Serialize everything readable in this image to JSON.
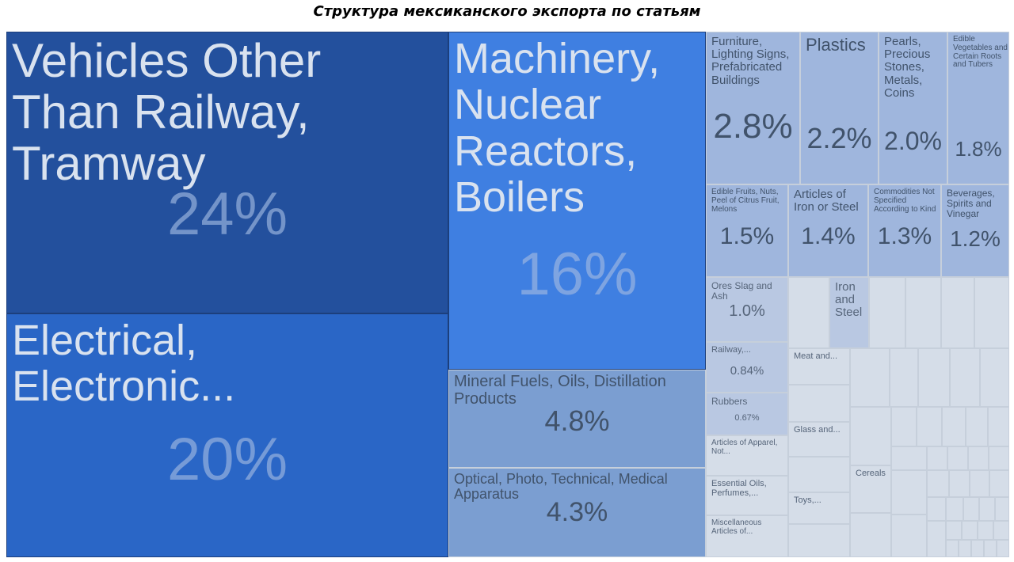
{
  "chart_data": {
    "type": "treemap",
    "title": "Структура мексиканского экспорта по статьям",
    "colors": {
      "top1": "#23509d",
      "top2": "#2a66c6",
      "top3": "#3f7fe1",
      "tier2": "#7b9ed1",
      "tier3": "#9fb6dd",
      "tier4": "#b9c8e2",
      "tier5": "#d5dde8"
    },
    "items": [
      {
        "label": "Vehicles Other Than Railway, Tramway",
        "share": "24%"
      },
      {
        "label": "Electrical, Electronic...",
        "share": "20%"
      },
      {
        "label": "Machinery, Nuclear Reactors, Boilers",
        "share": "16%"
      },
      {
        "label": "Mineral Fuels, Oils, Distillation Products",
        "share": "4.8%"
      },
      {
        "label": "Optical, Photo, Technical, Medical Apparatus",
        "share": "4.3%"
      },
      {
        "label": "Furniture, Lighting Signs, Prefabricated Buildings",
        "share": "2.8%"
      },
      {
        "label": "Plastics",
        "share": "2.2%"
      },
      {
        "label": "Pearls, Precious Stones, Metals, Coins",
        "share": "2.0%"
      },
      {
        "label": "Edible Vegetables and Certain Roots and Tubers",
        "share": "1.8%"
      },
      {
        "label": "Edible Fruits, Nuts, Peel of Citrus Fruit, Melons",
        "share": "1.5%"
      },
      {
        "label": "Articles of Iron or Steel",
        "share": "1.4%"
      },
      {
        "label": "Commodities Not Specified According to Kind",
        "share": "1.3%"
      },
      {
        "label": "Beverages, Spirits and Vinegar",
        "share": "1.2%"
      },
      {
        "label": "Ores Slag and Ash",
        "share": "1.0%"
      },
      {
        "label": "Iron and Steel",
        "share": ""
      },
      {
        "label": "Railway,...",
        "share": "0.84%"
      },
      {
        "label": "Rubbers",
        "share": "0.67%"
      },
      {
        "label": "Articles of Apparel, Not...",
        "share": ""
      },
      {
        "label": "Essential Oils, Perfumes,...",
        "share": ""
      },
      {
        "label": "Miscellaneous Articles of...",
        "share": ""
      },
      {
        "label": "Meat and...",
        "share": ""
      },
      {
        "label": "Glass and...",
        "share": ""
      },
      {
        "label": "Toys,...",
        "share": ""
      },
      {
        "label": "Cereals",
        "share": ""
      }
    ]
  }
}
